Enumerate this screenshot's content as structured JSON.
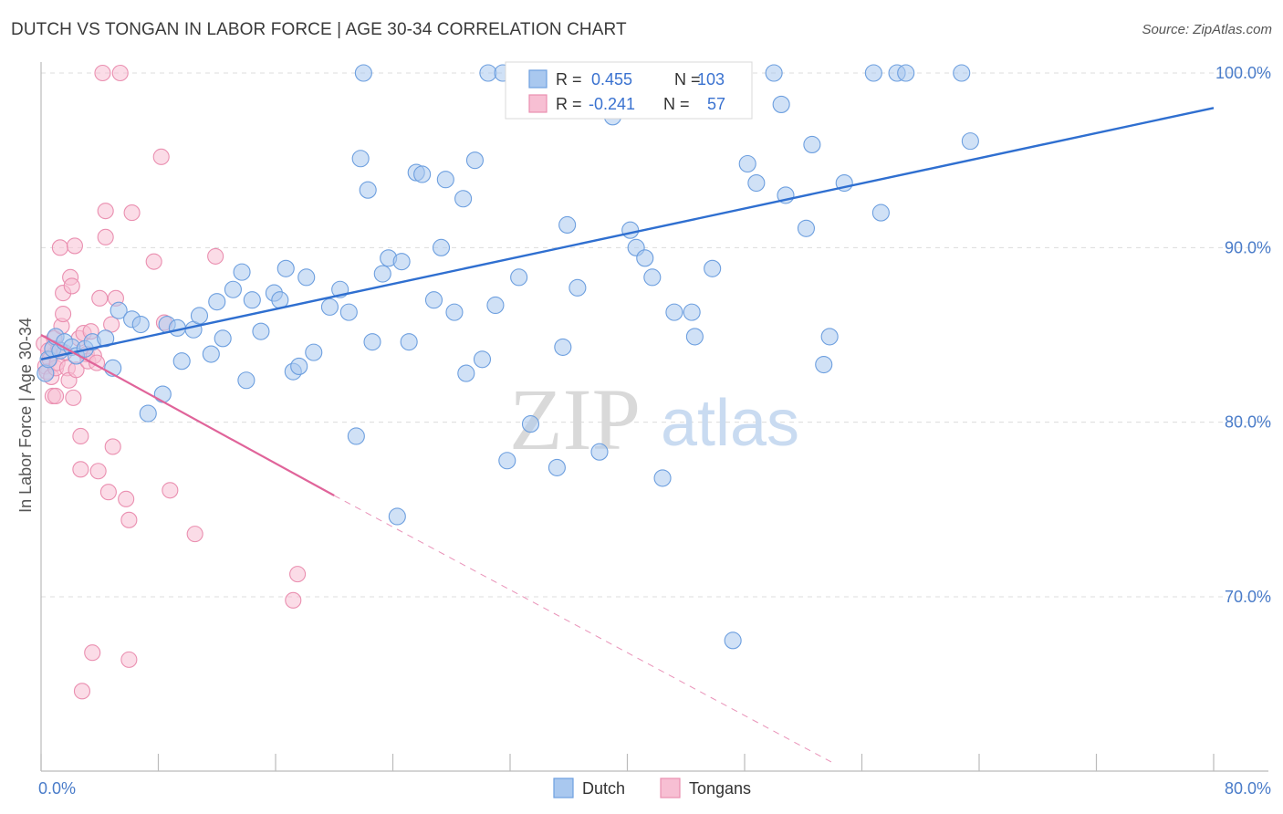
{
  "title": "DUTCH VS TONGAN IN LABOR FORCE | AGE 30-34 CORRELATION CHART",
  "source": "Source: ZipAtlas.com",
  "watermark": {
    "zip": "ZIP",
    "atlas": "atlas"
  },
  "colors": {
    "dutch_fill": "#a9c8ef",
    "dutch_stroke": "#6d9fdf",
    "dutch_line": "#2f6fd0",
    "tongan_fill": "#f7bfd3",
    "tongan_stroke": "#ea8fb0",
    "tongan_line": "#e0649a",
    "axis_tick": "#4a7cc9",
    "grid": "#dcdcdc"
  },
  "stats_legend": {
    "dutch": {
      "r_label": "R =",
      "r_value": "0.455",
      "n_label": "N =",
      "n_value": "103"
    },
    "tongans": {
      "r_label": "R =",
      "r_value": "-0.241",
      "n_label": "N =",
      "n_value": "57"
    }
  },
  "chart_data": {
    "type": "scatter",
    "title": "DUTCH VS TONGAN IN LABOR FORCE | AGE 30-34 CORRELATION CHART",
    "xlabel": "",
    "ylabel": "In Labor Force | Age 30-34",
    "xlim": [
      0,
      80
    ],
    "ylim": [
      60.5,
      102.5
    ],
    "x_tick_labels": [
      "0.0%",
      "80.0%"
    ],
    "y_ticks": [
      70,
      80,
      90,
      100
    ],
    "y_tick_labels": [
      "70.0%",
      "80.0%",
      "90.0%",
      "100.0%"
    ],
    "grid": true,
    "legend_position": "bottom",
    "series": [
      {
        "name": "Dutch",
        "r": 0.455,
        "n": 103,
        "trend": {
          "x": [
            0,
            80
          ],
          "y": [
            83.6,
            98.0
          ],
          "style": "solid"
        },
        "points": [
          [
            0.3,
            82.8
          ],
          [
            0.5,
            83.6
          ],
          [
            0.8,
            84.2
          ],
          [
            1.0,
            84.9
          ],
          [
            1.3,
            84.1
          ],
          [
            1.6,
            84.6
          ],
          [
            2.1,
            84.3
          ],
          [
            2.4,
            83.8
          ],
          [
            3.0,
            84.2
          ],
          [
            3.5,
            84.6
          ],
          [
            4.4,
            84.8
          ],
          [
            4.9,
            83.1
          ],
          [
            5.3,
            86.4
          ],
          [
            6.2,
            85.9
          ],
          [
            6.8,
            85.6
          ],
          [
            7.3,
            80.5
          ],
          [
            8.3,
            81.6
          ],
          [
            8.6,
            85.6
          ],
          [
            9.3,
            85.4
          ],
          [
            9.6,
            83.5
          ],
          [
            10.4,
            85.3
          ],
          [
            10.8,
            86.1
          ],
          [
            11.6,
            83.9
          ],
          [
            12.0,
            86.9
          ],
          [
            12.4,
            84.8
          ],
          [
            13.1,
            87.6
          ],
          [
            13.7,
            88.6
          ],
          [
            14.0,
            82.4
          ],
          [
            14.4,
            87.0
          ],
          [
            15.0,
            85.2
          ],
          [
            15.9,
            87.4
          ],
          [
            16.3,
            87.0
          ],
          [
            16.7,
            88.8
          ],
          [
            17.2,
            82.9
          ],
          [
            17.6,
            83.2
          ],
          [
            18.1,
            88.3
          ],
          [
            18.6,
            84.0
          ],
          [
            19.7,
            86.6
          ],
          [
            20.4,
            87.6
          ],
          [
            21.0,
            86.3
          ],
          [
            21.5,
            79.2
          ],
          [
            21.8,
            95.1
          ],
          [
            22.0,
            100.0
          ],
          [
            22.3,
            93.3
          ],
          [
            22.6,
            84.6
          ],
          [
            23.3,
            88.5
          ],
          [
            23.7,
            89.4
          ],
          [
            24.3,
            74.6
          ],
          [
            24.6,
            89.2
          ],
          [
            25.1,
            84.6
          ],
          [
            25.6,
            94.3
          ],
          [
            26.0,
            94.2
          ],
          [
            26.8,
            87.0
          ],
          [
            27.3,
            90.0
          ],
          [
            27.6,
            93.9
          ],
          [
            28.2,
            86.3
          ],
          [
            28.8,
            92.8
          ],
          [
            29.0,
            82.8
          ],
          [
            29.6,
            95.0
          ],
          [
            30.1,
            83.6
          ],
          [
            30.5,
            100.0
          ],
          [
            31.0,
            86.7
          ],
          [
            31.5,
            100.0
          ],
          [
            31.8,
            77.8
          ],
          [
            32.6,
            88.3
          ],
          [
            33.0,
            100.0
          ],
          [
            33.4,
            79.9
          ],
          [
            34.8,
            100.0
          ],
          [
            35.2,
            77.4
          ],
          [
            35.6,
            84.3
          ],
          [
            35.9,
            91.3
          ],
          [
            36.3,
            100.0
          ],
          [
            36.6,
            87.7
          ],
          [
            37.1,
            100.0
          ],
          [
            38.1,
            78.3
          ],
          [
            39.0,
            97.5
          ],
          [
            39.6,
            100.0
          ],
          [
            40.2,
            91.0
          ],
          [
            40.6,
            90.0
          ],
          [
            41.2,
            89.4
          ],
          [
            41.7,
            88.3
          ],
          [
            42.4,
            76.8
          ],
          [
            43.2,
            86.3
          ],
          [
            44.4,
            86.3
          ],
          [
            44.6,
            84.9
          ],
          [
            45.8,
            88.8
          ],
          [
            47.2,
            67.5
          ],
          [
            48.2,
            94.8
          ],
          [
            48.8,
            93.7
          ],
          [
            50.0,
            100.0
          ],
          [
            50.5,
            98.2
          ],
          [
            50.8,
            93.0
          ],
          [
            52.2,
            91.1
          ],
          [
            52.6,
            95.9
          ],
          [
            53.4,
            83.3
          ],
          [
            53.8,
            84.9
          ],
          [
            54.8,
            93.7
          ],
          [
            56.8,
            100.0
          ],
          [
            57.3,
            92.0
          ],
          [
            58.4,
            100.0
          ],
          [
            59.0,
            100.0
          ],
          [
            62.8,
            100.0
          ],
          [
            63.4,
            96.1
          ]
        ]
      },
      {
        "name": "Tongans",
        "r": -0.241,
        "n": 57,
        "trend": {
          "x": [
            0,
            20
          ],
          "y": [
            85.0,
            75.8
          ],
          "style": "solid",
          "extension": {
            "x": [
              20,
              54
            ],
            "y": [
              75.8,
              60.5
            ],
            "style": "dashed"
          }
        },
        "points": [
          [
            0.2,
            84.5
          ],
          [
            0.3,
            83.2
          ],
          [
            0.4,
            82.9
          ],
          [
            0.5,
            84.1
          ],
          [
            0.6,
            83.6
          ],
          [
            0.7,
            82.6
          ],
          [
            0.8,
            81.5
          ],
          [
            0.9,
            84.8
          ],
          [
            1.0,
            83.1
          ],
          [
            1.0,
            81.5
          ],
          [
            1.1,
            83.4
          ],
          [
            1.2,
            84.2
          ],
          [
            1.3,
            90.0
          ],
          [
            1.4,
            85.5
          ],
          [
            1.5,
            86.2
          ],
          [
            1.5,
            87.4
          ],
          [
            1.6,
            84.0
          ],
          [
            1.8,
            83.1
          ],
          [
            1.9,
            82.4
          ],
          [
            2.0,
            88.3
          ],
          [
            2.1,
            87.8
          ],
          [
            2.2,
            81.4
          ],
          [
            2.3,
            90.1
          ],
          [
            2.4,
            83.0
          ],
          [
            2.6,
            84.8
          ],
          [
            2.7,
            79.2
          ],
          [
            2.7,
            77.3
          ],
          [
            2.9,
            85.1
          ],
          [
            3.1,
            83.9
          ],
          [
            3.2,
            83.5
          ],
          [
            3.4,
            85.2
          ],
          [
            3.6,
            83.8
          ],
          [
            3.8,
            83.4
          ],
          [
            3.9,
            77.2
          ],
          [
            4.0,
            87.1
          ],
          [
            4.2,
            100.0
          ],
          [
            4.4,
            90.6
          ],
          [
            4.4,
            92.1
          ],
          [
            4.6,
            76.0
          ],
          [
            4.8,
            85.6
          ],
          [
            4.9,
            78.6
          ],
          [
            5.1,
            87.1
          ],
          [
            5.4,
            100.0
          ],
          [
            5.8,
            75.6
          ],
          [
            6.0,
            74.4
          ],
          [
            6.2,
            92.0
          ],
          [
            7.7,
            89.2
          ],
          [
            8.2,
            95.2
          ],
          [
            8.4,
            85.7
          ],
          [
            8.8,
            76.1
          ],
          [
            10.5,
            73.6
          ],
          [
            11.9,
            89.5
          ],
          [
            17.5,
            71.3
          ],
          [
            17.2,
            69.8
          ],
          [
            3.5,
            66.8
          ],
          [
            6.0,
            66.4
          ],
          [
            2.8,
            64.6
          ]
        ]
      }
    ]
  },
  "bottom_legend": {
    "dutch": "Dutch",
    "tongans": "Tongans"
  }
}
